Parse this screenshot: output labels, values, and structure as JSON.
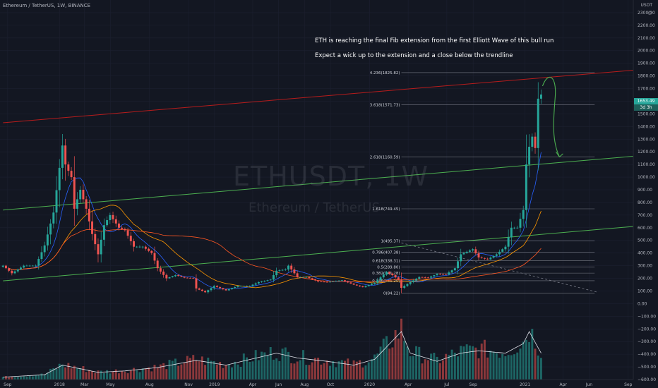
{
  "header": {
    "symbol_line": "Ethereum / TetherUS, 1W, BINANCE",
    "currency": "USDT"
  },
  "annotation": {
    "line1": "ETH is reaching the final Fib extension from the first Elliott Wave of this bull run",
    "line2": "Expect a wick up to the extension and a close below the trendline"
  },
  "watermark": {
    "ticker": "ETHUSDT, 1W",
    "name": "Ethereum / TetherUS"
  },
  "price_label": {
    "last": "1653.49",
    "countdown": "3d 3h"
  },
  "chart_data": {
    "type": "candlestick",
    "price_axis": {
      "ylim": [
        -600,
        2400
      ],
      "ticks": [
        2300,
        2200,
        2100,
        2000,
        1900,
        1800,
        1700,
        1600,
        1500,
        1400,
        1300,
        1200,
        1100,
        1000,
        900,
        800,
        700,
        600,
        500,
        400,
        300,
        200,
        100,
        0,
        -100,
        -200,
        -300,
        -400,
        -500,
        -600
      ],
      "tick_labels": [
        "2300.00",
        "2200.00",
        "2100.00",
        "2000.00",
        "1900.00",
        "1800.00",
        "1700.00",
        "1600.00",
        "1500.00",
        "1400.00",
        "1300.00",
        "1200.00",
        "1100.00",
        "1000.00",
        "900.00",
        "800.00",
        "700.00",
        "600.00",
        "500.00",
        "400.00",
        "300.00",
        "200.00",
        "100.00",
        "0.00",
        "−100.00",
        "−200.00",
        "−300.00",
        "−400.00",
        "−500.00",
        "−600.00"
      ]
    },
    "time_axis": {
      "start": "2017-08-14",
      "end": "2021-09-13",
      "labels": [
        {
          "date": "2017-09-01",
          "text": "Sep"
        },
        {
          "date": "2018-01-01",
          "text": "2018"
        },
        {
          "date": "2018-03-01",
          "text": "Mar"
        },
        {
          "date": "2018-05-01",
          "text": "May"
        },
        {
          "date": "2018-08-01",
          "text": "Aug"
        },
        {
          "date": "2018-11-01",
          "text": "Nov"
        },
        {
          "date": "2019-01-01",
          "text": "2019"
        },
        {
          "date": "2019-04-01",
          "text": "Apr"
        },
        {
          "date": "2019-06-01",
          "text": "Jun"
        },
        {
          "date": "2019-08-01",
          "text": "Aug"
        },
        {
          "date": "2019-10-01",
          "text": "Oct"
        },
        {
          "date": "2020-01-01",
          "text": "2020"
        },
        {
          "date": "2020-04-01",
          "text": "Apr"
        },
        {
          "date": "2020-07-01",
          "text": "Jul"
        },
        {
          "date": "2020-09-01",
          "text": "Sep"
        },
        {
          "date": "2021-01-01",
          "text": "2021"
        },
        {
          "date": "2021-04-01",
          "text": "Apr"
        },
        {
          "date": "2021-06-01",
          "text": "Jun"
        },
        {
          "date": "2021-09-01",
          "text": "Sep"
        }
      ]
    },
    "price_anchors": [
      [
        "2017-08-21",
        300
      ],
      [
        "2017-09-11",
        240
      ],
      [
        "2017-10-09",
        300
      ],
      [
        "2017-11-06",
        300
      ],
      [
        "2017-11-27",
        460
      ],
      [
        "2017-12-18",
        720
      ],
      [
        "2018-01-08",
        1250
      ],
      [
        "2018-01-15",
        1100
      ],
      [
        "2018-01-29",
        1000
      ],
      [
        "2018-02-05",
        750
      ],
      [
        "2018-02-19",
        900
      ],
      [
        "2018-03-05",
        750
      ],
      [
        "2018-03-19",
        550
      ],
      [
        "2018-04-02",
        390
      ],
      [
        "2018-04-16",
        620
      ],
      [
        "2018-04-30",
        700
      ],
      [
        "2018-05-21",
        600
      ],
      [
        "2018-06-04",
        580
      ],
      [
        "2018-06-25",
        450
      ],
      [
        "2018-07-16",
        450
      ],
      [
        "2018-08-06",
        400
      ],
      [
        "2018-08-20",
        280
      ],
      [
        "2018-09-10",
        200
      ],
      [
        "2018-10-01",
        225
      ],
      [
        "2018-10-22",
        205
      ],
      [
        "2018-11-12",
        200
      ],
      [
        "2018-11-19",
        120
      ],
      [
        "2018-12-10",
        90
      ],
      [
        "2018-12-31",
        140
      ],
      [
        "2019-01-28",
        105
      ],
      [
        "2019-02-25",
        140
      ],
      [
        "2019-03-25",
        140
      ],
      [
        "2019-04-15",
        170
      ],
      [
        "2019-05-13",
        190
      ],
      [
        "2019-05-27",
        260
      ],
      [
        "2019-06-17",
        270
      ],
      [
        "2019-06-24",
        300
      ],
      [
        "2019-07-15",
        210
      ],
      [
        "2019-08-05",
        210
      ],
      [
        "2019-09-02",
        175
      ],
      [
        "2019-09-23",
        170
      ],
      [
        "2019-10-28",
        185
      ],
      [
        "2019-11-25",
        150
      ],
      [
        "2019-12-16",
        130
      ],
      [
        "2020-01-13",
        165
      ],
      [
        "2020-02-10",
        250
      ],
      [
        "2020-02-24",
        225
      ],
      [
        "2020-03-09",
        190
      ],
      [
        "2020-03-16",
        125
      ],
      [
        "2020-04-06",
        170
      ],
      [
        "2020-04-27",
        210
      ],
      [
        "2020-05-18",
        205
      ],
      [
        "2020-06-08",
        235
      ],
      [
        "2020-06-29",
        230
      ],
      [
        "2020-07-20",
        280
      ],
      [
        "2020-08-03",
        390
      ],
      [
        "2020-08-31",
        430
      ],
      [
        "2020-09-14",
        365
      ],
      [
        "2020-10-05",
        350
      ],
      [
        "2020-10-26",
        390
      ],
      [
        "2020-11-16",
        450
      ],
      [
        "2020-11-30",
        600
      ],
      [
        "2020-12-14",
        600
      ],
      [
        "2020-12-28",
        740
      ],
      [
        "2021-01-04",
        1100
      ],
      [
        "2021-01-11",
        1240
      ],
      [
        "2021-01-18",
        1320
      ],
      [
        "2021-01-25",
        1230
      ],
      [
        "2021-02-01",
        1620
      ],
      [
        "2021-02-08",
        1653
      ]
    ],
    "volume_anchors": [
      [
        "2017-08-21",
        0.05
      ],
      [
        "2017-11-27",
        0.1
      ],
      [
        "2018-01-08",
        0.3
      ],
      [
        "2018-02-05",
        0.25
      ],
      [
        "2018-04-02",
        0.15
      ],
      [
        "2018-06-04",
        0.18
      ],
      [
        "2018-08-20",
        0.25
      ],
      [
        "2018-11-19",
        0.4
      ],
      [
        "2019-01-28",
        0.3
      ],
      [
        "2019-05-27",
        0.55
      ],
      [
        "2019-07-15",
        0.45
      ],
      [
        "2019-09-23",
        0.38
      ],
      [
        "2019-11-25",
        0.3
      ],
      [
        "2020-01-13",
        0.42
      ],
      [
        "2020-03-16",
        1.0
      ],
      [
        "2020-04-06",
        0.55
      ],
      [
        "2020-06-08",
        0.38
      ],
      [
        "2020-08-03",
        0.55
      ],
      [
        "2020-09-14",
        0.6
      ],
      [
        "2020-11-16",
        0.55
      ],
      [
        "2020-12-28",
        0.75
      ],
      [
        "2021-01-11",
        1.0
      ],
      [
        "2021-02-08",
        0.55
      ]
    ],
    "moving_averages": [
      {
        "color": "#2962ff",
        "period": 8
      },
      {
        "color": "#ff9800",
        "period": 21
      },
      {
        "color": "#ff5722",
        "period": 55
      }
    ],
    "trendlines": [
      {
        "color": "#b71c1c",
        "points": [
          [
            "2017-08-21",
            1430
          ],
          [
            "2021-09-13",
            1845
          ]
        ]
      },
      {
        "color": "#4caf50",
        "points": [
          [
            "2017-08-21",
            740
          ],
          [
            "2021-09-13",
            1165
          ]
        ]
      },
      {
        "color": "#4caf50",
        "points": [
          [
            "2017-08-21",
            180
          ],
          [
            "2021-09-13",
            610
          ]
        ]
      }
    ],
    "dashed_line": {
      "color": "#787b86",
      "points": [
        [
          "2020-03-16",
          480
        ],
        [
          "2021-06-21",
          90
        ]
      ]
    },
    "fib_levels": [
      {
        "label": "4.236(1825.82)",
        "value": 1825.82
      },
      {
        "label": "3.618(1571.73)",
        "value": 1571.73
      },
      {
        "label": "2.618(1160.59)",
        "value": 1160.59
      },
      {
        "label": "1.618(749.45)",
        "value": 749.45
      },
      {
        "label": "1(495.37)",
        "value": 495.37
      },
      {
        "label": "0.786(407.38)",
        "value": 407.38
      },
      {
        "label": "0.618(338.31)",
        "value": 338.31
      },
      {
        "label": "0.5(289.80)",
        "value": 289.8
      },
      {
        "label": "0.382(241.28)",
        "value": 241.28
      },
      {
        "label": "0.236(181.25)",
        "value": 181.25
      },
      {
        "label": "0(84.22)",
        "value": 84.22
      }
    ],
    "fib_range": {
      "from": "2020-03-16",
      "to": "2021-06-14"
    },
    "projection_color": "#4caf50",
    "up_color": "#26a69a",
    "down_color": "#ef5350"
  }
}
